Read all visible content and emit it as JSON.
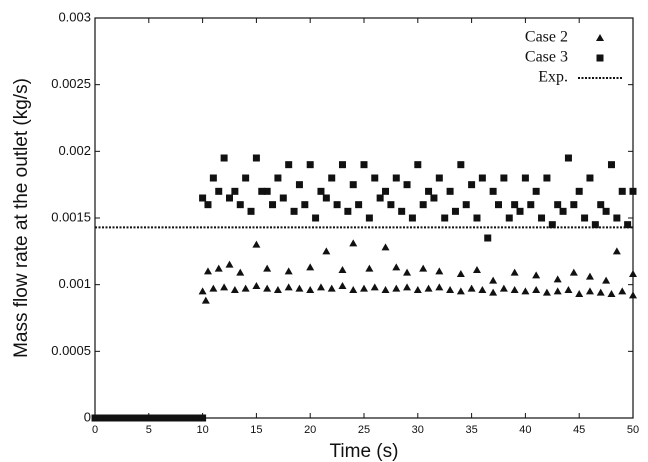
{
  "chart_data": {
    "type": "scatter",
    "x_label": "Time (s)",
    "y_label": "Mass flow rate at the outlet (kg/s)",
    "xlim": [
      0,
      50
    ],
    "xticks": [
      0,
      5,
      10,
      15,
      20,
      25,
      30,
      35,
      40,
      45,
      50
    ],
    "ylim": [
      0,
      0.003
    ],
    "yticks": [
      0,
      0.0005,
      0.001,
      0.0015,
      0.002,
      0.0025,
      0.003
    ],
    "legend": "upper right",
    "series": [
      {
        "name": "Case 2",
        "color": "#111111",
        "marker": "triangle",
        "x": [
          10,
          11,
          12,
          13,
          14,
          15,
          16,
          17,
          18,
          19,
          20,
          21,
          22,
          23,
          24,
          25,
          26,
          27,
          28,
          29,
          30,
          31,
          32,
          33,
          34,
          35,
          36,
          37,
          38,
          39,
          40,
          41,
          42,
          43,
          44,
          45,
          46,
          47,
          48,
          49,
          50,
          10.3,
          10.5,
          11.5,
          12.5,
          13.5,
          15,
          16,
          18,
          20,
          21.5,
          23,
          24,
          25.5,
          27,
          28,
          29,
          30.5,
          32,
          34,
          35.5,
          37,
          39,
          41,
          43,
          44.5,
          46,
          47.5,
          48.5,
          50
        ],
        "values": [
          0.00095,
          0.00097,
          0.00098,
          0.00096,
          0.00097,
          0.00099,
          0.00097,
          0.00096,
          0.00098,
          0.00097,
          0.00096,
          0.00098,
          0.00097,
          0.00099,
          0.00096,
          0.00097,
          0.00098,
          0.00096,
          0.00097,
          0.00098,
          0.00096,
          0.00097,
          0.00098,
          0.00096,
          0.00095,
          0.00097,
          0.00096,
          0.00094,
          0.00097,
          0.00096,
          0.00095,
          0.00096,
          0.00094,
          0.00095,
          0.00096,
          0.00093,
          0.00095,
          0.00094,
          0.00093,
          0.00095,
          0.00092,
          0.00088,
          0.0011,
          0.00112,
          0.00115,
          0.00109,
          0.0013,
          0.00112,
          0.0011,
          0.00113,
          0.00125,
          0.00111,
          0.00131,
          0.00112,
          0.00128,
          0.00113,
          0.00109,
          0.00112,
          0.0011,
          0.00108,
          0.00111,
          0.00103,
          0.00109,
          0.00107,
          0.00104,
          0.00109,
          0.00106,
          0.00103,
          0.00125,
          0.00108
        ]
      },
      {
        "name": "Case 3",
        "color": "#111111",
        "marker": "square",
        "x": [
          0,
          0.5,
          1,
          1.5,
          2,
          2.5,
          3,
          3.5,
          4,
          4.5,
          5,
          5.5,
          6,
          6.5,
          7,
          7.5,
          8,
          8.5,
          9,
          9.5,
          10,
          10,
          11,
          12,
          13,
          14,
          15,
          16,
          17,
          18,
          19,
          20,
          21,
          22,
          23,
          24,
          25,
          26,
          27,
          28,
          29,
          30,
          31,
          32,
          33,
          34,
          35,
          36,
          37,
          38,
          39,
          40,
          41,
          42,
          43,
          44,
          45,
          46,
          47,
          48,
          49,
          50,
          10.5,
          11.5,
          12.5,
          13.5,
          14.5,
          15.5,
          16.5,
          17.5,
          18.5,
          19.5,
          20.5,
          21.5,
          22.5,
          23.5,
          24.5,
          25.5,
          26.5,
          27.5,
          28.5,
          29.5,
          30.5,
          31.5,
          32.5,
          33.5,
          34.5,
          35.5,
          36.5,
          37.5,
          38.5,
          39.5,
          40.5,
          41.5,
          42.5,
          43.5,
          44.5,
          45.5,
          46.5,
          47.5,
          48.5,
          49.5
        ],
        "values": [
          0,
          0,
          0,
          0,
          0,
          0,
          0,
          0,
          0,
          0,
          0,
          0,
          0,
          0,
          0,
          0,
          0,
          0,
          0,
          0,
          0,
          0.00165,
          0.0018,
          0.00195,
          0.0017,
          0.0018,
          0.00195,
          0.0017,
          0.0018,
          0.0019,
          0.00175,
          0.0019,
          0.0017,
          0.0018,
          0.0019,
          0.00175,
          0.0019,
          0.0018,
          0.0017,
          0.0018,
          0.00175,
          0.0019,
          0.0017,
          0.0018,
          0.0017,
          0.0019,
          0.00175,
          0.0018,
          0.0017,
          0.0018,
          0.0016,
          0.0018,
          0.0017,
          0.0018,
          0.0016,
          0.00195,
          0.0017,
          0.0018,
          0.0016,
          0.0019,
          0.0017,
          0.0017,
          0.0016,
          0.0017,
          0.00165,
          0.0016,
          0.00155,
          0.0017,
          0.0016,
          0.00165,
          0.00155,
          0.0016,
          0.0015,
          0.00165,
          0.0016,
          0.00155,
          0.0016,
          0.0015,
          0.00165,
          0.0016,
          0.00155,
          0.0015,
          0.0016,
          0.00165,
          0.0015,
          0.00155,
          0.0016,
          0.0015,
          0.00135,
          0.0016,
          0.0015,
          0.00155,
          0.0016,
          0.0015,
          0.00145,
          0.00155,
          0.0016,
          0.0015,
          0.00145,
          0.00155,
          0.0015,
          0.00145
        ]
      },
      {
        "name": "Exp.",
        "color": "#111111",
        "marker": "dotted-line",
        "x": [
          0,
          50
        ],
        "values": [
          0.00143,
          0.00143
        ]
      }
    ]
  }
}
